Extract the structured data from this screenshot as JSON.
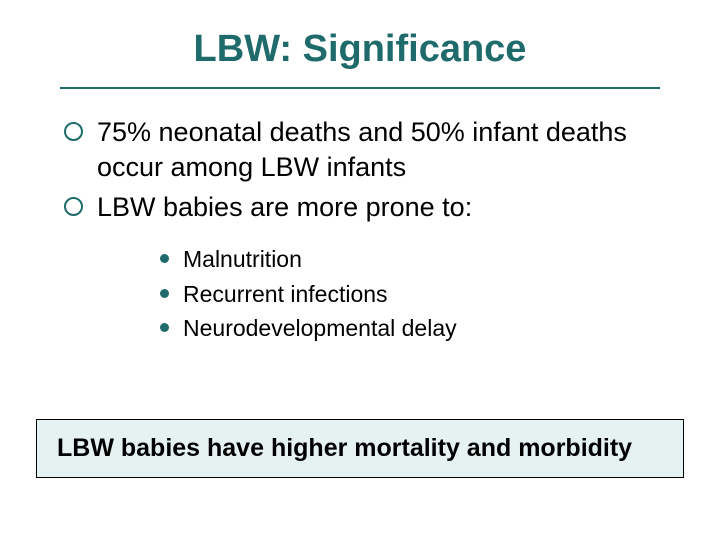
{
  "title": {
    "text": "LBW: Significance",
    "style": "font-size:38px; color:#1f6b6b;"
  },
  "divider": {
    "style": "border-top-color:#1f6b6b;"
  },
  "bullets": {
    "items": [
      "75% neonatal deaths and 50% infant deaths occur among LBW infants",
      "LBW babies are more prone to:"
    ],
    "text_style": "font-size:27px; color:#000000;",
    "hollow_marker_style": "border-color:#1f6b6b; width:19px; height:19px;"
  },
  "sub_bullets": {
    "items": [
      "Malnutrition",
      "Recurrent infections",
      "Neurodevelopmental delay"
    ],
    "text_style": "font-size:23px; color:#000000;",
    "marker_style": "background:#1f6b6b; width:9px; height:9px;"
  },
  "callout": {
    "text": "LBW babies have higher mortality and morbidity",
    "box_style": "background:#e6f2f2; border-color:#000000;",
    "text_style": "font-size:25px; color:#000000;"
  }
}
